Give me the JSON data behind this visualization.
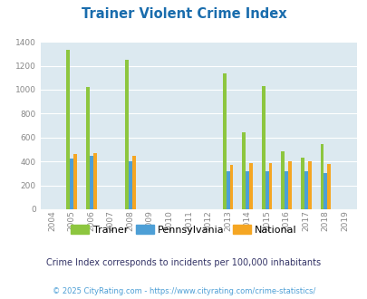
{
  "title": "Trainer Violent Crime Index",
  "subtitle": "Crime Index corresponds to incidents per 100,000 inhabitants",
  "footer": "© 2025 CityRating.com - https://www.cityrating.com/crime-statistics/",
  "years": [
    2004,
    2005,
    2006,
    2007,
    2008,
    2009,
    2010,
    2011,
    2012,
    2013,
    2014,
    2015,
    2016,
    2017,
    2018,
    2019
  ],
  "trainer": [
    0,
    1330,
    1025,
    0,
    1248,
    0,
    0,
    0,
    0,
    1135,
    645,
    1032,
    488,
    435,
    544,
    0
  ],
  "pennsylvania": [
    0,
    422,
    445,
    0,
    405,
    0,
    0,
    0,
    0,
    318,
    315,
    318,
    318,
    318,
    305,
    0
  ],
  "national": [
    0,
    465,
    473,
    0,
    450,
    0,
    0,
    0,
    0,
    370,
    385,
    390,
    400,
    400,
    382,
    0
  ],
  "ylim": [
    0,
    1400
  ],
  "yticks": [
    0,
    200,
    400,
    600,
    800,
    1000,
    1200,
    1400
  ],
  "bar_width": 0.18,
  "color_trainer": "#8dc63f",
  "color_pennsylvania": "#4d9fd6",
  "color_national": "#f5a623",
  "bg_color": "#dce9f0",
  "title_color": "#1a6dad",
  "subtitle_color": "#333366",
  "footer_color": "#4d9fd6",
  "grid_color": "#ffffff",
  "legend_labels": [
    "Trainer",
    "Pennsylvania",
    "National"
  ],
  "tick_color": "#888888"
}
